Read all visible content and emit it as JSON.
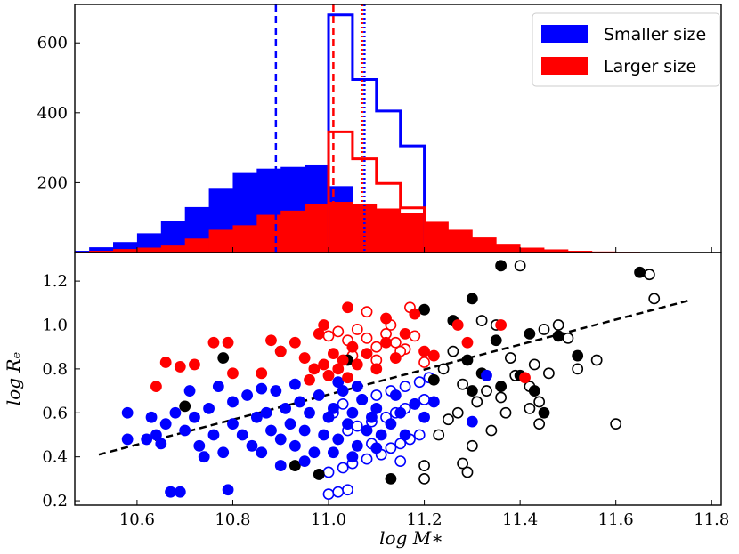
{
  "chart_data": [
    {
      "type": "bar",
      "panel": "top",
      "title": "",
      "xlabel": "",
      "ylabel": "",
      "xlim": [
        10.47,
        11.82
      ],
      "ylim": [
        0,
        710
      ],
      "yticks": [
        200,
        400,
        600
      ],
      "ytick_labels": [
        "200",
        "400",
        "600"
      ],
      "grid": false,
      "legend_position": "top-right",
      "legend": [
        {
          "label": "Smaller size",
          "color": "#0000ff"
        },
        {
          "label": "Larger size",
          "color": "#ff0000"
        }
      ],
      "bin_edges": [
        10.47,
        10.5,
        10.55,
        10.6,
        10.65,
        10.7,
        10.75,
        10.8,
        10.85,
        10.9,
        10.95,
        11.0,
        11.05,
        11.1,
        11.15,
        11.2,
        11.25,
        11.3,
        11.35,
        11.4,
        11.45,
        11.5,
        11.55,
        11.6,
        11.65,
        11.7
      ],
      "series": [
        {
          "name": "Smaller size (filled)",
          "color": "#0000ff",
          "style": "filled",
          "values": [
            5,
            15,
            30,
            55,
            90,
            130,
            185,
            230,
            240,
            245,
            252,
            190,
            10,
            0,
            0,
            0,
            0,
            0,
            0,
            0,
            0,
            0,
            0,
            0,
            0
          ]
        },
        {
          "name": "Larger size (filled)",
          "color": "#ff0000",
          "style": "filled",
          "values": [
            2,
            5,
            10,
            14,
            20,
            40,
            65,
            78,
            108,
            120,
            140,
            145,
            140,
            126,
            112,
            88,
            65,
            43,
            25,
            14,
            9,
            5,
            3,
            2,
            1
          ]
        },
        {
          "name": "Smaller size (step)",
          "color": "#0000ff",
          "style": "step",
          "bin_edges": [
            11.0,
            11.05,
            11.1,
            11.15,
            11.2
          ],
          "values": [
            680,
            495,
            405,
            305
          ]
        },
        {
          "name": "Larger size (step)",
          "color": "#ff0000",
          "style": "step",
          "bin_edges": [
            11.0,
            11.05,
            11.1,
            11.15,
            11.2
          ],
          "values": [
            345,
            268,
            198,
            128
          ]
        }
      ],
      "vlines": [
        {
          "x": 10.89,
          "color": "#0000ff",
          "style": "dashed"
        },
        {
          "x": 11.01,
          "color": "#ff0000",
          "style": "dashed"
        },
        {
          "x": 11.07,
          "color": "#ff0000",
          "style": "dotted"
        },
        {
          "x": 11.075,
          "color": "#0000ff",
          "style": "dotted"
        }
      ]
    },
    {
      "type": "scatter",
      "panel": "bottom",
      "title": "",
      "xlabel": "log M∗",
      "ylabel": "log Rₑ",
      "xlim": [
        10.47,
        11.82
      ],
      "ylim": [
        0.18,
        1.33
      ],
      "xticks": [
        10.6,
        10.8,
        11.0,
        11.2,
        11.4,
        11.6,
        11.8
      ],
      "xtick_labels": [
        "10.6",
        "10.8",
        "11.0",
        "11.2",
        "11.4",
        "11.6",
        "11.8"
      ],
      "yticks": [
        0.2,
        0.4,
        0.6,
        0.8,
        1.0,
        1.2
      ],
      "ytick_labels": [
        "0.2",
        "0.4",
        "0.6",
        "0.8",
        "1.0",
        "1.2"
      ],
      "grid": false,
      "fit_line": {
        "x": [
          10.52,
          11.75
        ],
        "y": [
          0.41,
          1.11
        ],
        "color": "#000000",
        "style": "dashed"
      },
      "series": [
        {
          "name": "blue filled",
          "color": "#0000ff",
          "filled": true,
          "points": [
            [
              10.58,
              0.6
            ],
            [
              10.58,
              0.48
            ],
            [
              10.62,
              0.48
            ],
            [
              10.63,
              0.58
            ],
            [
              10.64,
              0.5
            ],
            [
              10.65,
              0.46
            ],
            [
              10.66,
              0.55
            ],
            [
              10.67,
              0.24
            ],
            [
              10.69,
              0.24
            ],
            [
              10.68,
              0.6
            ],
            [
              10.7,
              0.52
            ],
            [
              10.72,
              0.58
            ],
            [
              10.73,
              0.45
            ],
            [
              10.74,
              0.4
            ],
            [
              10.75,
              0.62
            ],
            [
              10.76,
              0.5
            ],
            [
              10.78,
              0.42
            ],
            [
              10.79,
              0.25
            ],
            [
              10.8,
              0.55
            ],
            [
              10.8,
              0.65
            ],
            [
              10.82,
              0.5
            ],
            [
              10.83,
              0.68
            ],
            [
              10.84,
              0.45
            ],
            [
              10.85,
              0.58
            ],
            [
              10.86,
              0.42
            ],
            [
              10.87,
              0.6
            ],
            [
              10.88,
              0.52
            ],
            [
              10.89,
              0.7
            ],
            [
              10.9,
              0.48
            ],
            [
              10.91,
              0.62
            ],
            [
              10.92,
              0.55
            ],
            [
              10.93,
              0.45
            ],
            [
              10.94,
              0.65
            ],
            [
              10.95,
              0.52
            ],
            [
              10.96,
              0.6
            ],
            [
              10.97,
              0.42
            ],
            [
              10.98,
              0.68
            ],
            [
              10.99,
              0.5
            ],
            [
              11.0,
              0.58
            ],
            [
              11.01,
              0.62
            ],
            [
              11.02,
              0.48
            ],
            [
              11.03,
              0.7
            ],
            [
              11.04,
              0.55
            ],
            [
              11.05,
              0.6
            ],
            [
              11.06,
              0.45
            ],
            [
              11.07,
              0.66
            ],
            [
              11.08,
              0.52
            ],
            [
              11.09,
              0.58
            ],
            [
              11.1,
              0.62
            ],
            [
              11.11,
              0.5
            ],
            [
              11.13,
              0.55
            ],
            [
              11.14,
              0.68
            ],
            [
              11.15,
              0.6
            ],
            [
              11.16,
              0.5
            ],
            [
              11.18,
              0.64
            ],
            [
              11.2,
              0.58
            ],
            [
              11.22,
              0.65
            ],
            [
              11.3,
              0.56
            ],
            [
              11.33,
              0.77
            ],
            [
              10.71,
              0.7
            ],
            [
              10.77,
              0.72
            ],
            [
              10.86,
              0.71
            ],
            [
              10.93,
              0.73
            ],
            [
              11.02,
              0.74
            ],
            [
              11.06,
              0.72
            ],
            [
              10.9,
              0.36
            ],
            [
              10.95,
              0.38
            ],
            [
              11.01,
              0.42
            ],
            [
              11.05,
              0.4
            ],
            [
              11.1,
              0.44
            ]
          ]
        },
        {
          "name": "blue open",
          "color": "#0000ff",
          "filled": false,
          "points": [
            [
              11.0,
              0.23
            ],
            [
              11.02,
              0.24
            ],
            [
              11.04,
              0.25
            ],
            [
              11.0,
              0.33
            ],
            [
              11.03,
              0.35
            ],
            [
              11.05,
              0.37
            ],
            [
              11.08,
              0.39
            ],
            [
              11.11,
              0.41
            ],
            [
              11.13,
              0.44
            ],
            [
              11.15,
              0.46
            ],
            [
              11.17,
              0.48
            ],
            [
              11.19,
              0.5
            ],
            [
              11.04,
              0.52
            ],
            [
              11.06,
              0.54
            ],
            [
              11.09,
              0.56
            ],
            [
              11.12,
              0.58
            ],
            [
              11.14,
              0.6
            ],
            [
              11.16,
              0.62
            ],
            [
              11.18,
              0.64
            ],
            [
              11.2,
              0.66
            ],
            [
              11.03,
              0.64
            ],
            [
              11.07,
              0.66
            ],
            [
              11.1,
              0.68
            ],
            [
              11.13,
              0.7
            ],
            [
              11.16,
              0.72
            ],
            [
              11.19,
              0.74
            ],
            [
              11.21,
              0.76
            ],
            [
              11.01,
              0.6
            ],
            [
              11.09,
              0.46
            ],
            [
              11.15,
              0.38
            ]
          ]
        },
        {
          "name": "red filled",
          "color": "#ff0000",
          "filled": true,
          "points": [
            [
              10.64,
              0.72
            ],
            [
              10.66,
              0.83
            ],
            [
              10.69,
              0.81
            ],
            [
              10.72,
              0.82
            ],
            [
              10.76,
              0.92
            ],
            [
              10.79,
              0.92
            ],
            [
              10.8,
              0.78
            ],
            [
              10.86,
              0.78
            ],
            [
              10.88,
              0.93
            ],
            [
              10.9,
              0.88
            ],
            [
              10.93,
              0.92
            ],
            [
              10.95,
              0.85
            ],
            [
              10.96,
              0.75
            ],
            [
              10.97,
              0.8
            ],
            [
              10.98,
              0.96
            ],
            [
              10.99,
              0.82
            ],
            [
              11.0,
              0.77
            ],
            [
              11.01,
              0.87
            ],
            [
              11.02,
              0.8
            ],
            [
              11.03,
              0.84
            ],
            [
              11.04,
              0.76
            ],
            [
              11.05,
              0.9
            ],
            [
              11.06,
              0.82
            ],
            [
              11.08,
              0.87
            ],
            [
              11.1,
              0.8
            ],
            [
              11.12,
              0.92
            ],
            [
              11.14,
              0.85
            ],
            [
              11.16,
              0.96
            ],
            [
              11.18,
              1.05
            ],
            [
              11.2,
              0.88
            ],
            [
              11.22,
              0.86
            ],
            [
              11.27,
              1.0
            ],
            [
              11.29,
              0.92
            ],
            [
              11.36,
              1.0
            ],
            [
              11.41,
              0.76
            ],
            [
              11.04,
              1.08
            ],
            [
              11.12,
              1.03
            ],
            [
              10.99,
              1.0
            ]
          ]
        },
        {
          "name": "red open",
          "color": "#ff0000",
          "filled": false,
          "points": [
            [
              11.0,
              0.95
            ],
            [
              11.02,
              0.97
            ],
            [
              11.04,
              0.93
            ],
            [
              11.06,
              0.98
            ],
            [
              11.08,
              0.94
            ],
            [
              11.1,
              0.9
            ],
            [
              11.12,
              0.96
            ],
            [
              11.14,
              0.92
            ],
            [
              11.16,
              0.89
            ],
            [
              11.18,
              0.95
            ],
            [
              11.05,
              0.86
            ],
            [
              11.1,
              0.84
            ],
            [
              11.15,
              0.88
            ],
            [
              11.2,
              0.83
            ],
            [
              11.08,
              1.06
            ],
            [
              11.17,
              1.08
            ],
            [
              11.13,
              1.0
            ]
          ]
        },
        {
          "name": "black filled",
          "color": "#000000",
          "filled": true,
          "points": [
            [
              10.7,
              0.63
            ],
            [
              10.78,
              0.85
            ],
            [
              10.9,
              0.88
            ],
            [
              10.93,
              0.36
            ],
            [
              10.98,
              0.32
            ],
            [
              11.04,
              0.84
            ],
            [
              11.13,
              0.3
            ],
            [
              11.2,
              1.07
            ],
            [
              11.26,
              1.02
            ],
            [
              11.29,
              0.84
            ],
            [
              11.3,
              1.12
            ],
            [
              11.32,
              0.78
            ],
            [
              11.35,
              0.93
            ],
            [
              11.36,
              0.72
            ],
            [
              11.36,
              1.27
            ],
            [
              11.4,
              0.77
            ],
            [
              11.42,
              0.96
            ],
            [
              11.43,
              0.7
            ],
            [
              11.45,
              0.6
            ],
            [
              11.48,
              0.95
            ],
            [
              11.52,
              0.86
            ],
            [
              11.65,
              1.24
            ],
            [
              11.3,
              0.7
            ],
            [
              11.22,
              0.75
            ]
          ]
        },
        {
          "name": "black open",
          "color": "#000000",
          "filled": false,
          "points": [
            [
              11.2,
              0.3
            ],
            [
              11.2,
              0.36
            ],
            [
              11.23,
              0.5
            ],
            [
              11.25,
              0.57
            ],
            [
              11.27,
              0.6
            ],
            [
              11.28,
              0.37
            ],
            [
              11.29,
              0.33
            ],
            [
              11.3,
              0.45
            ],
            [
              11.31,
              0.65
            ],
            [
              11.33,
              0.7
            ],
            [
              11.34,
              0.52
            ],
            [
              11.36,
              0.67
            ],
            [
              11.37,
              0.6
            ],
            [
              11.38,
              0.85
            ],
            [
              11.39,
              0.77
            ],
            [
              11.4,
              1.27
            ],
            [
              11.42,
              0.72
            ],
            [
              11.43,
              0.82
            ],
            [
              11.44,
              0.65
            ],
            [
              11.45,
              0.98
            ],
            [
              11.46,
              0.78
            ],
            [
              11.48,
              1.0
            ],
            [
              11.5,
              0.94
            ],
            [
              11.52,
              0.8
            ],
            [
              11.56,
              0.84
            ],
            [
              11.6,
              0.55
            ],
            [
              11.67,
              1.23
            ],
            [
              11.68,
              1.12
            ],
            [
              11.42,
              0.62
            ],
            [
              11.44,
              0.55
            ],
            [
              11.35,
              1.0
            ],
            [
              11.32,
              1.02
            ],
            [
              11.26,
              0.88
            ],
            [
              11.24,
              0.8
            ],
            [
              11.28,
              0.73
            ]
          ]
        }
      ]
    }
  ]
}
